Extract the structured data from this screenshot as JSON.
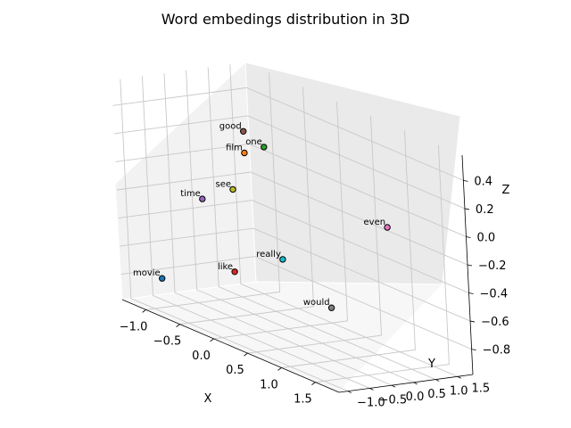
{
  "chart_data": {
    "type": "scatter",
    "title": "Word embedings distribution in 3D",
    "xlabel": "X",
    "ylabel": "Y",
    "zlabel": "Z",
    "xlim": [
      -1.35,
      1.85
    ],
    "ylim": [
      -1.2,
      1.85
    ],
    "zlim": [
      -0.98,
      0.58
    ],
    "x_ticks": [
      "−1.0",
      "−0.5",
      "0.0",
      "0.5",
      "1.0",
      "1.5"
    ],
    "y_ticks": [
      "−1.0",
      "−0.5",
      "0.0",
      "0.5",
      "1.0",
      "1.5"
    ],
    "z_ticks": [
      "−0.8",
      "−0.6",
      "−0.4",
      "−0.2",
      "0.0",
      "0.2",
      "0.4"
    ],
    "grid": true,
    "points": [
      {
        "label": "movie",
        "x": -0.8,
        "y": -1.1,
        "z": -0.72,
        "color": "#1f77b4"
      },
      {
        "label": "film",
        "x": -0.2,
        "y": 0.0,
        "z": 0.25,
        "color": "#ff7f0e"
      },
      {
        "label": "one",
        "x": -0.1,
        "y": 0.3,
        "z": 0.3,
        "color": "#2ca02c"
      },
      {
        "label": "like",
        "x": 0.1,
        "y": -0.8,
        "z": -0.5,
        "color": "#d62728"
      },
      {
        "label": "time",
        "x": -1.0,
        "y": 0.2,
        "z": -0.25,
        "color": "#9467bd"
      },
      {
        "label": "good",
        "x": -0.4,
        "y": 0.3,
        "z": 0.35,
        "color": "#8c564b"
      },
      {
        "label": "even",
        "x": 1.7,
        "y": 0.3,
        "z": 0.1,
        "color": "#e377c2"
      },
      {
        "label": "would",
        "x": 1.2,
        "y": -0.3,
        "z": -0.55,
        "color": "#7f7f7f"
      },
      {
        "label": "see",
        "x": -0.4,
        "y": 0.0,
        "z": -0.05,
        "color": "#bcbd22"
      },
      {
        "label": "really",
        "x": 0.5,
        "y": -0.3,
        "z": -0.35,
        "color": "#17becf"
      }
    ]
  }
}
